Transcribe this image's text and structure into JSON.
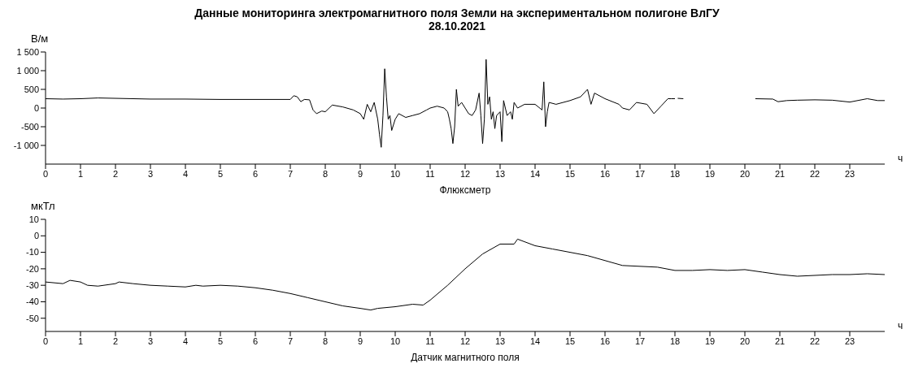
{
  "chart_data": [
    {
      "type": "line",
      "title": "Данные мониторинга электромагнитного поля Земли на экспериментальном полигоне ВлГУ",
      "subtitle": "28.10.2021",
      "xlabel": "Флюксметр",
      "ylabel": "В/м",
      "annotations": [
        "ч"
      ],
      "grid": false,
      "legend": false,
      "marker": "none",
      "line_style": "solid",
      "xlim": [
        0,
        24
      ],
      "xticks": [
        0,
        1,
        2,
        3,
        4,
        5,
        6,
        7,
        8,
        9,
        10,
        11,
        12,
        13,
        14,
        15,
        16,
        17,
        18,
        19,
        20,
        21,
        22,
        23
      ],
      "ylim": [
        -1500,
        1500
      ],
      "yticks": [
        {
          "value": -1000,
          "label": "-1 000"
        },
        -500,
        0,
        500,
        {
          "value": 1000,
          "label": "1 000"
        },
        {
          "value": 1500,
          "label": "1 500"
        }
      ],
      "x": [
        0,
        0.5,
        1,
        1.5,
        2,
        3,
        4,
        5,
        6,
        7,
        7.1,
        7.2,
        7.3,
        7.4,
        7.55,
        7.65,
        7.75,
        7.9,
        8,
        8.2,
        8.5,
        8.8,
        9,
        9.1,
        9.2,
        9.3,
        9.4,
        9.5,
        9.55,
        9.6,
        9.65,
        9.7,
        9.75,
        9.8,
        9.85,
        9.9,
        10,
        10.1,
        10.3,
        10.5,
        10.7,
        10.9,
        11,
        11.2,
        11.4,
        11.5,
        11.55,
        11.6,
        11.65,
        11.7,
        11.75,
        11.8,
        11.9,
        12,
        12.1,
        12.2,
        12.3,
        12.4,
        12.45,
        12.5,
        12.55,
        12.6,
        12.65,
        12.7,
        12.75,
        12.8,
        12.85,
        12.9,
        13,
        13.05,
        13.1,
        13.2,
        13.3,
        13.35,
        13.4,
        13.5,
        13.7,
        14,
        14.2,
        14.25,
        14.3,
        14.35,
        14.4,
        14.6,
        15,
        15.3,
        15.5,
        15.6,
        15.7,
        16,
        16.4,
        16.5,
        16.7,
        16.9,
        17.2,
        17.4,
        17.6,
        17.8,
        17.9,
        18,
        18.04,
        18.08,
        18.24,
        18.28,
        20.3,
        20.8,
        20.95,
        21.2,
        21.5,
        22,
        22.5,
        23,
        23.5,
        23.8,
        24
      ],
      "series": [
        {
          "color": "#000000",
          "values": [
            250,
            240,
            250,
            270,
            260,
            240,
            240,
            230,
            230,
            230,
            330,
            300,
            170,
            230,
            220,
            -50,
            -150,
            -80,
            -100,
            80,
            30,
            -50,
            -150,
            -300,
            100,
            -100,
            150,
            -300,
            -700,
            -1050,
            -200,
            1050,
            300,
            -300,
            -200,
            -600,
            -300,
            -150,
            -250,
            -200,
            -150,
            -50,
            0,
            50,
            0,
            -100,
            -300,
            -550,
            -950,
            -500,
            500,
            50,
            150,
            0,
            -150,
            -200,
            -50,
            400,
            -200,
            -950,
            -300,
            1300,
            100,
            300,
            -300,
            -100,
            -550,
            -200,
            -100,
            -900,
            200,
            -200,
            -100,
            -300,
            150,
            0,
            100,
            100,
            -50,
            700,
            -500,
            -100,
            150,
            100,
            200,
            300,
            500,
            100,
            400,
            250,
            100,
            0,
            -50,
            150,
            100,
            -150,
            50,
            250,
            250,
            250,
            null,
            260,
            250,
            null,
            250,
            240,
            170,
            200,
            210,
            220,
            210,
            160,
            250,
            200,
            200
          ]
        }
      ]
    },
    {
      "type": "line",
      "xlabel": "Датчик магнитного поля",
      "ylabel": "мкТл",
      "annotations": [
        "ч"
      ],
      "grid": false,
      "legend": false,
      "marker": "none",
      "line_style": "solid",
      "xlim": [
        0,
        24
      ],
      "xticks": [
        0,
        1,
        2,
        3,
        4,
        5,
        6,
        7,
        8,
        9,
        10,
        11,
        12,
        13,
        14,
        15,
        16,
        17,
        18,
        19,
        20,
        21,
        22,
        23
      ],
      "ylim": [
        -58,
        10
      ],
      "yticks": [
        -50,
        -40,
        -30,
        -20,
        -10,
        0,
        10
      ],
      "x": [
        0,
        0.5,
        0.7,
        1,
        1.2,
        1.5,
        2,
        2.1,
        2.5,
        3,
        3.5,
        4,
        4.3,
        4.5,
        5,
        5.5,
        6,
        6.5,
        7,
        7.5,
        8,
        8.5,
        9,
        9.3,
        9.5,
        10,
        10.5,
        10.8,
        11,
        11.5,
        12,
        12.5,
        13,
        13.4,
        13.5,
        14,
        14.5,
        15,
        15.5,
        16,
        16.5,
        17,
        17.5,
        18,
        18.5,
        19,
        19.5,
        20,
        20.5,
        21,
        21.5,
        22,
        22.5,
        23,
        23.5,
        24
      ],
      "series": [
        {
          "color": "#000000",
          "values": [
            -28,
            -29,
            -27,
            -28,
            -30,
            -30.5,
            -29,
            -28,
            -29,
            -30,
            -30.5,
            -31,
            -30,
            -30.5,
            -30,
            -30.5,
            -31.5,
            -33,
            -35,
            -37.5,
            -40,
            -42.5,
            -44,
            -45,
            -44,
            -43,
            -41.5,
            -42,
            -39,
            -30,
            -20,
            -11,
            -5,
            -5,
            -2,
            -6,
            -8,
            -10,
            -12,
            -15,
            -18,
            -18.5,
            -19,
            -21,
            -21,
            -20.5,
            -21,
            -20.5,
            -22,
            -23.5,
            -24.5,
            -24,
            -23.5,
            -23.5,
            -23,
            -23.5
          ]
        }
      ]
    }
  ]
}
